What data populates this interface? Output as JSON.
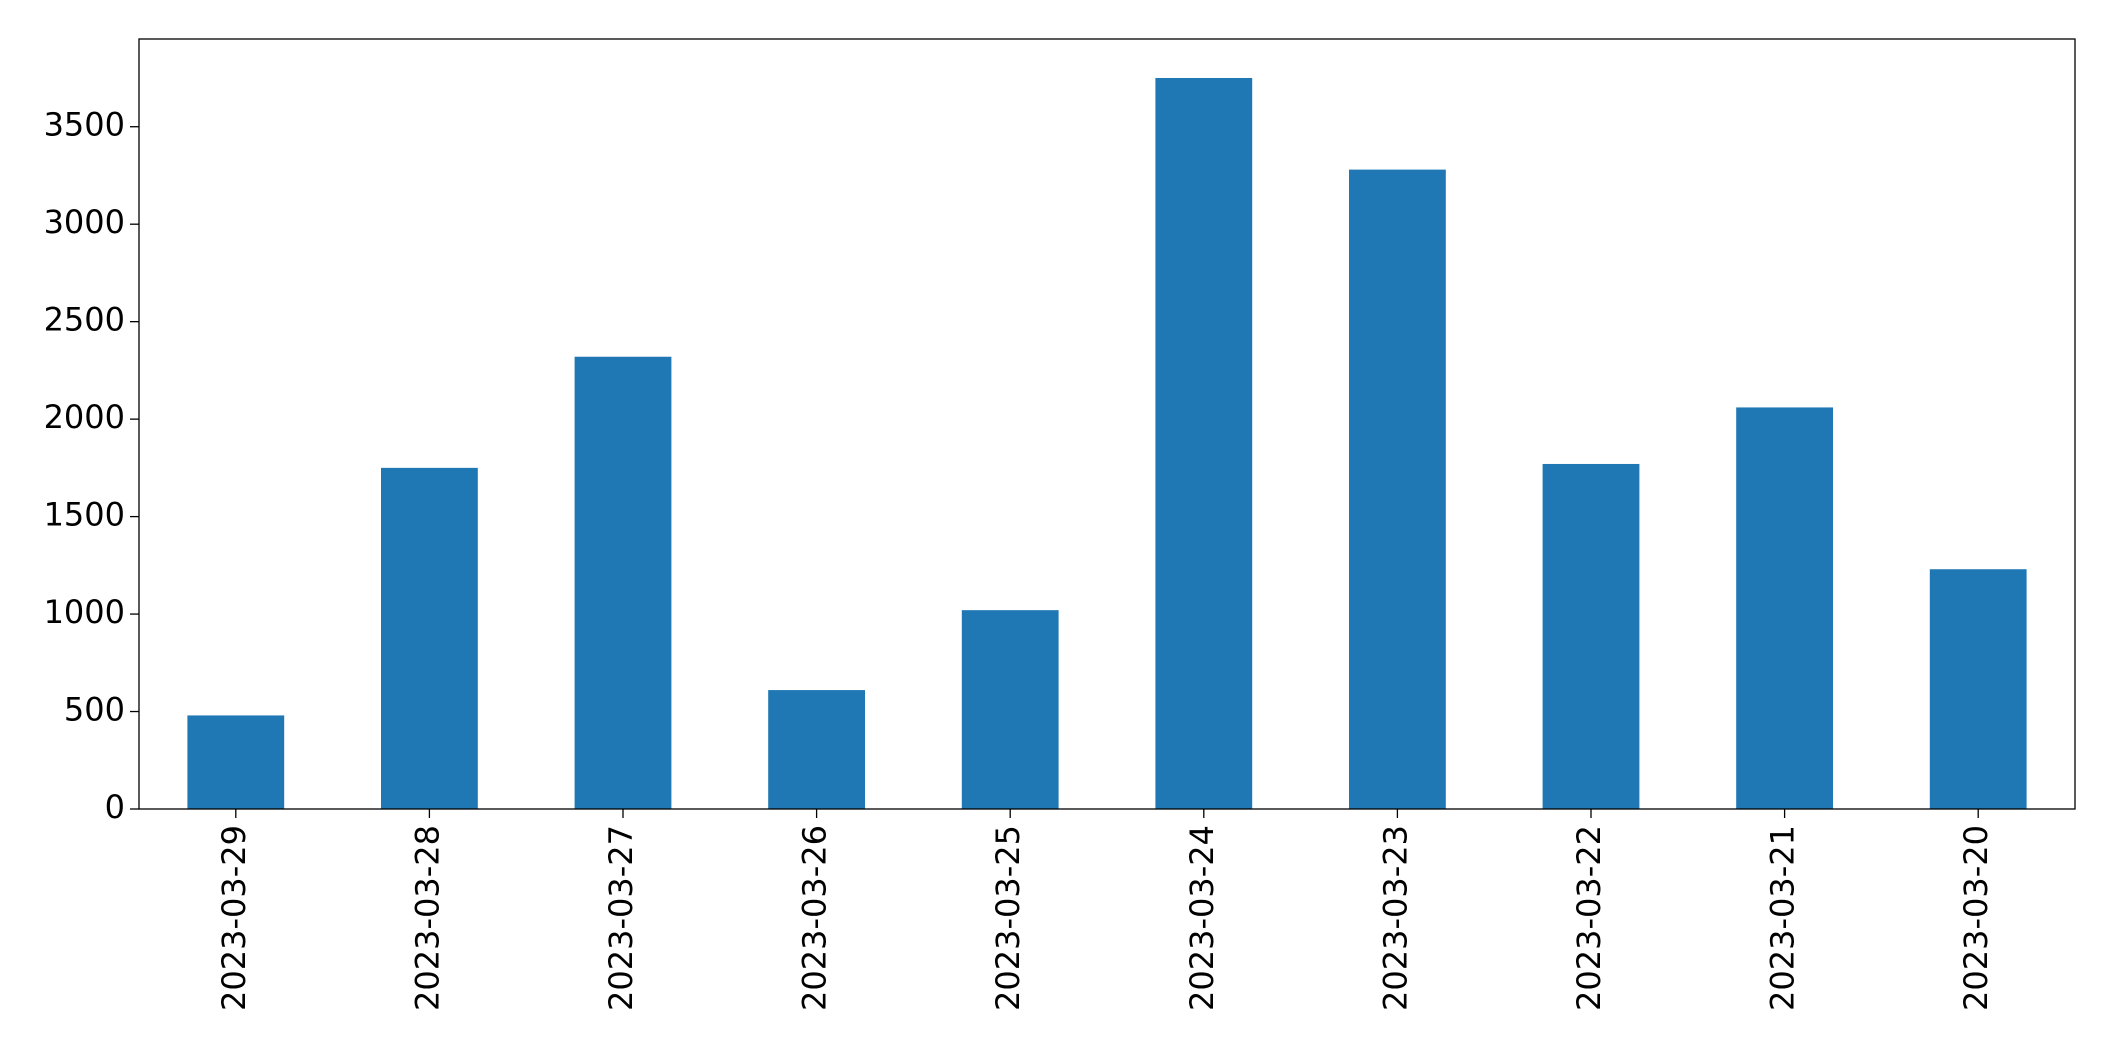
{
  "chart_data": {
    "type": "bar",
    "categories": [
      "2023-03-29",
      "2023-03-28",
      "2023-03-27",
      "2023-03-26",
      "2023-03-25",
      "2023-03-24",
      "2023-03-23",
      "2023-03-22",
      "2023-03-21",
      "2023-03-20"
    ],
    "values": [
      480,
      1750,
      2320,
      610,
      1020,
      3750,
      3280,
      1770,
      2060,
      1230
    ],
    "color": "#1f77b4",
    "ylim": [
      0,
      3950
    ],
    "yticks": [
      0,
      500,
      1000,
      1500,
      2000,
      2500,
      3000,
      3500
    ],
    "grid": false
  }
}
